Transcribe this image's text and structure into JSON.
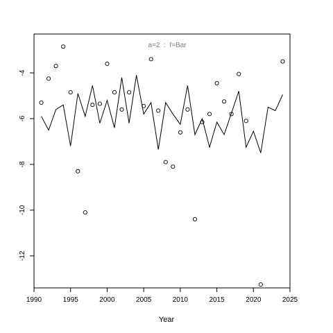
{
  "chart_data": {
    "type": "line",
    "title": "",
    "annotation": "a=2  :  f=Bar",
    "xlabel": "Year",
    "ylabel": "",
    "xlim": [
      1990,
      2025
    ],
    "ylim": [
      -13.4,
      -2.3
    ],
    "x_ticks": [
      1990,
      1995,
      2000,
      2005,
      2010,
      2015,
      2020,
      2025
    ],
    "y_ticks": [
      -12,
      -10,
      -8,
      -6,
      -4
    ],
    "grid": false,
    "legend": "none",
    "colors": {
      "line": "#000000",
      "points": "#000000",
      "annotation": "#808080",
      "axes": "#000000"
    },
    "series": [
      {
        "kind": "line",
        "x": [
          1991,
          1992,
          1993,
          1994,
          1995,
          1996,
          1997,
          1998,
          1999,
          2000,
          2001,
          2002,
          2003,
          2004,
          2005,
          2006,
          2007,
          2008,
          2009,
          2010,
          2011,
          2012,
          2013,
          2014,
          2015,
          2016,
          2017,
          2018,
          2019,
          2020,
          2021,
          2022,
          2023,
          2024
        ],
        "y": [
          -5.9,
          -6.5,
          -5.6,
          -5.4,
          -7.2,
          -4.9,
          -5.9,
          -4.55,
          -6.2,
          -5.2,
          -6.4,
          -4.2,
          -6.2,
          -4.1,
          -5.8,
          -5.3,
          -7.35,
          -5.3,
          -5.8,
          -6.25,
          -4.55,
          -6.7,
          -6.0,
          -7.25,
          -6.15,
          -6.7,
          -5.75,
          -4.8,
          -7.25,
          -6.55,
          -7.5,
          -5.5,
          -5.65,
          -4.95
        ]
      },
      {
        "kind": "points",
        "x": [
          1991,
          1992,
          1993,
          1994,
          1995,
          1996,
          1997,
          1998,
          1999,
          2000,
          2001,
          2002,
          2003,
          2005,
          2006,
          2007,
          2008,
          2009,
          2010,
          2011,
          2012,
          2013,
          2014,
          2015,
          2016,
          2017,
          2018,
          2019,
          2021,
          2024
        ],
        "y": [
          -5.3,
          -4.25,
          -3.7,
          -2.85,
          -4.85,
          -8.3,
          -10.1,
          -5.4,
          -5.35,
          -3.6,
          -4.85,
          -5.6,
          -4.85,
          -5.45,
          -3.4,
          -5.65,
          -7.9,
          -8.1,
          -6.6,
          -5.6,
          -10.4,
          -6.15,
          -5.8,
          -4.45,
          -5.25,
          -5.8,
          -4.05,
          -6.1,
          -13.25,
          -3.5
        ]
      }
    ]
  }
}
